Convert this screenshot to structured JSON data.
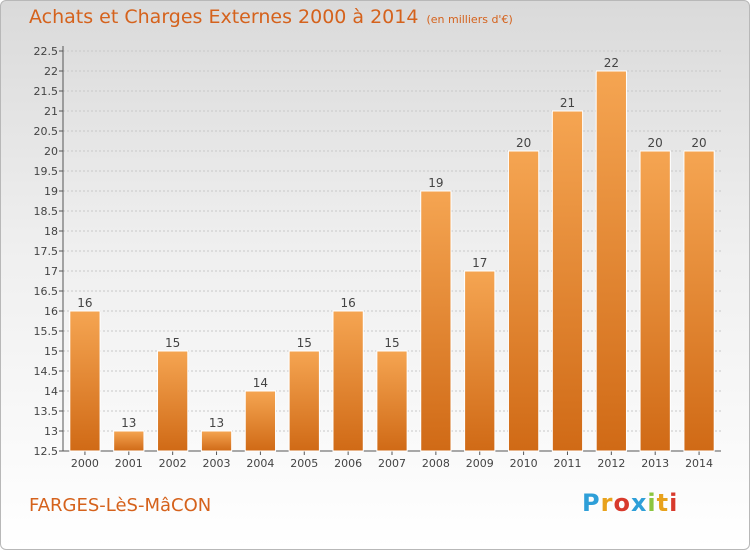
{
  "header": {
    "title": "Achats et Charges Externes 2000 à 2014",
    "unit": "(en milliers d'€)"
  },
  "footer": {
    "commune": "FARGES-LèS-MâCON",
    "brand": {
      "letters": [
        "P",
        "r",
        "o",
        "x",
        "i",
        "t",
        "i"
      ],
      "colors": [
        "#2e9fd8",
        "#e8a21c",
        "#d83a2c",
        "#2e9fd8",
        "#8cc53f",
        "#e8a21c",
        "#d83a2c"
      ]
    }
  },
  "colors": {
    "bar_top": "#f5a552",
    "bar_bottom": "#d06a16",
    "accent": "#d5621c",
    "grid": "#c8c8c8"
  },
  "chart_data": {
    "type": "bar",
    "title": "Achats et Charges Externes 2000 à 2014",
    "subtitle": "(en milliers d'€)",
    "categories": [
      "2000",
      "2001",
      "2002",
      "2003",
      "2004",
      "2005",
      "2006",
      "2007",
      "2008",
      "2009",
      "2010",
      "2011",
      "2012",
      "2013",
      "2014"
    ],
    "values": [
      16,
      13,
      15,
      13,
      14,
      15,
      16,
      15,
      19,
      17,
      20,
      21,
      22,
      20,
      20
    ],
    "ylim": [
      12.5,
      22.5
    ],
    "yticks": [
      "12.5",
      "13",
      "13.5",
      "14",
      "14.5",
      "15",
      "15.5",
      "16",
      "16.5",
      "17",
      "17.5",
      "18",
      "18.5",
      "19",
      "19.5",
      "20",
      "20.5",
      "21",
      "21.5",
      "22",
      "22.5"
    ],
    "grid": true,
    "legend": "none"
  }
}
